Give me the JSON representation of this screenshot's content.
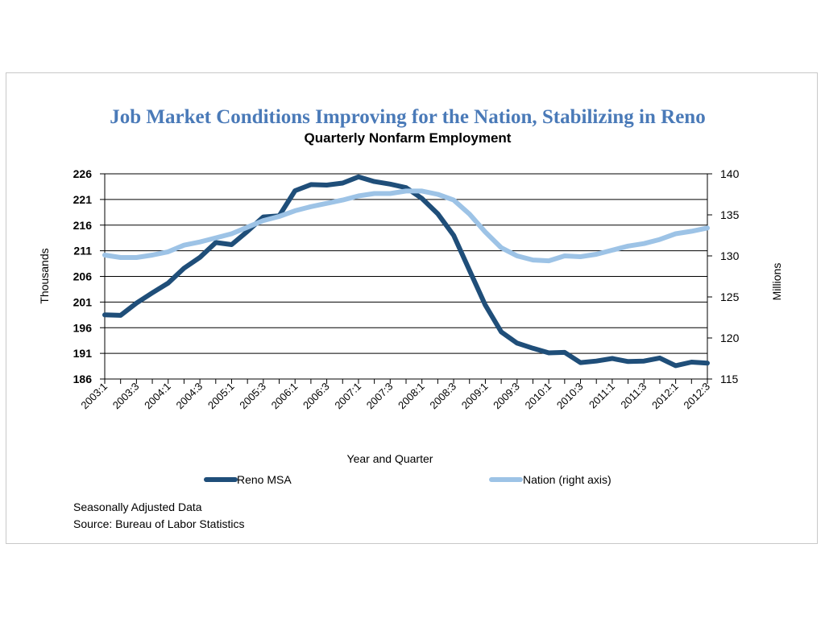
{
  "chart_data": {
    "type": "line",
    "title": "Job  Market Conditions Improving for the Nation, Stabilizing in Reno",
    "subtitle": "Quarterly Nonfarm Employment",
    "xlabel": "Year and Quarter",
    "ylabel": "Thousands",
    "y2label": "Millions",
    "ylim": [
      186,
      226
    ],
    "y2lim": [
      115,
      140
    ],
    "yticks": [
      "186",
      "191",
      "196",
      "201",
      "206",
      "211",
      "216",
      "221",
      "226"
    ],
    "y2ticks": [
      "115",
      "120",
      "125",
      "130",
      "135",
      "140"
    ],
    "grid": true,
    "legend_position": "bottom",
    "x": [
      "2003:1",
      "2003:2",
      "2003:3",
      "2003:4",
      "2004:1",
      "2004:2",
      "2004:3",
      "2004:4",
      "2005:1",
      "2005:2",
      "2005:3",
      "2005:4",
      "2006:1",
      "2006:2",
      "2006:3",
      "2006:4",
      "2007:1",
      "2007:2",
      "2007:3",
      "2007:4",
      "2008:1",
      "2008:2",
      "2008:3",
      "2008:4",
      "2009:1",
      "2009:2",
      "2009:3",
      "2009:4",
      "2010:1",
      "2010:2",
      "2010:3",
      "2010:4",
      "2011:1",
      "2011:2",
      "2011:3",
      "2011:4",
      "2012:1",
      "2012:2",
      "2012:3"
    ],
    "xtick_labels": [
      "2003:1",
      "2003:3",
      "2004:1",
      "2004:3",
      "2005:1",
      "2005:3",
      "2006:1",
      "2006:3",
      "2007:1",
      "2007:3",
      "2008:1",
      "2008:3",
      "2009:1",
      "2009:3",
      "2010:1",
      "2010:3",
      "2011:1",
      "2011:3",
      "2012:1",
      "2012:3"
    ],
    "series": [
      {
        "name": "Reno MSA",
        "axis": "left",
        "color": "#1f4e79",
        "values": [
          198.5,
          198.4,
          200.8,
          202.8,
          204.7,
          207.6,
          209.7,
          212.6,
          212.2,
          214.8,
          217.6,
          217.8,
          222.7,
          223.9,
          223.8,
          224.2,
          225.4,
          224.5,
          224.0,
          223.3,
          221.2,
          218.2,
          214.0,
          207.2,
          200.4,
          195.2,
          193.0,
          192.0,
          191.1,
          191.2,
          189.2,
          189.5,
          190.0,
          189.4,
          189.5,
          190.1,
          188.6,
          189.3,
          189.1
        ]
      },
      {
        "name": "Nation (right axis)",
        "axis": "right",
        "color": "#9dc3e6",
        "values": [
          130.1,
          129.8,
          129.8,
          130.1,
          130.5,
          131.3,
          131.7,
          132.2,
          132.7,
          133.5,
          134.3,
          134.8,
          135.5,
          136.0,
          136.4,
          136.8,
          137.3,
          137.6,
          137.6,
          137.9,
          137.9,
          137.5,
          136.8,
          135.1,
          132.9,
          131.0,
          130.0,
          129.5,
          129.4,
          130.0,
          129.9,
          130.2,
          130.7,
          131.2,
          131.5,
          132.0,
          132.7,
          133.0,
          133.4
        ]
      }
    ]
  },
  "notes": {
    "line1": "Seasonally Adjusted Data",
    "line2": "Source: Bureau of Labor  Statistics"
  }
}
